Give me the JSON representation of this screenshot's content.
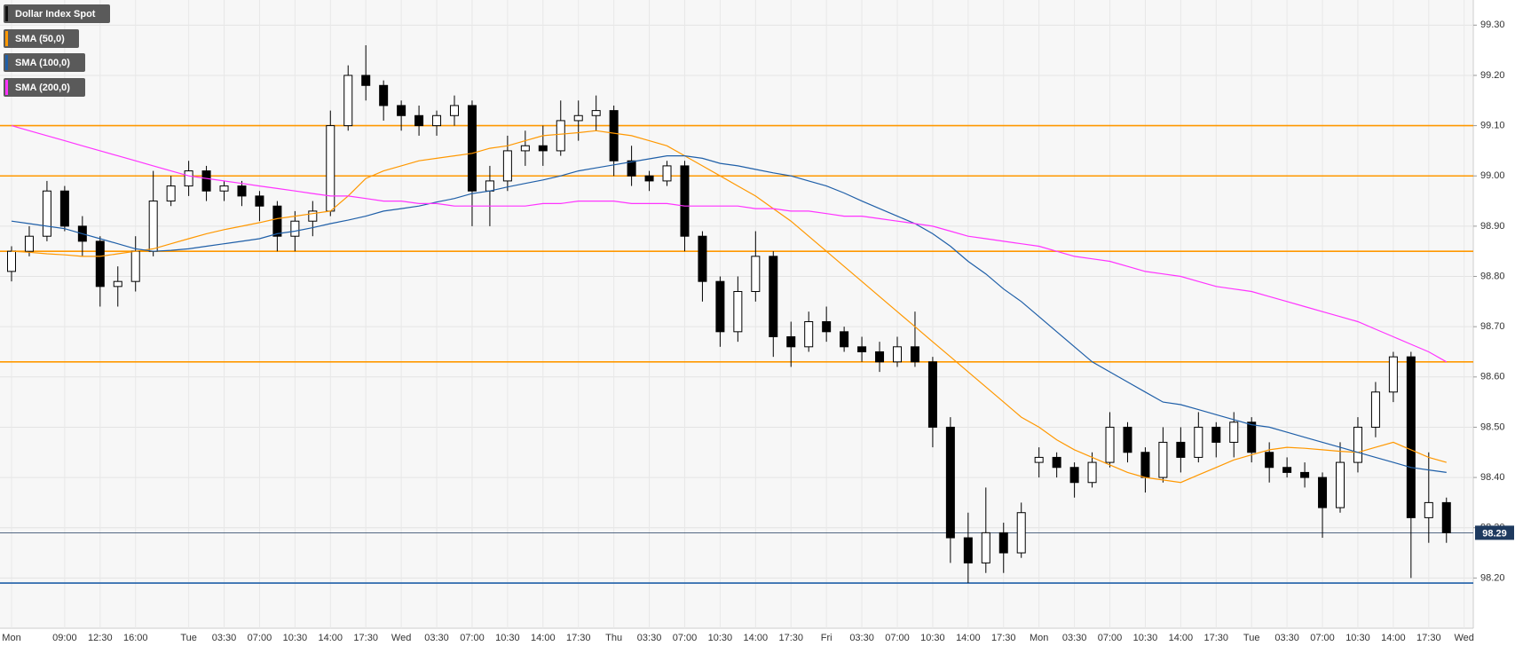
{
  "chart_data": {
    "type": "candlestick",
    "categories": [
      "Mon",
      null,
      null,
      "09:00",
      null,
      "12:30",
      null,
      "16:00",
      null,
      null,
      "Tue",
      null,
      "03:30",
      null,
      "07:00",
      null,
      "10:30",
      null,
      "14:00",
      null,
      "17:30",
      null,
      "Wed",
      null,
      "03:30",
      null,
      "07:00",
      null,
      "10:30",
      null,
      "14:00",
      null,
      "17:30",
      null,
      "Thu",
      null,
      "03:30",
      null,
      "07:00",
      null,
      "10:30",
      null,
      "14:00",
      null,
      "17:30",
      null,
      "Fri",
      null,
      "03:30",
      null,
      "07:00",
      null,
      "10:30",
      null,
      "14:00",
      null,
      "17:30",
      null,
      "Mon",
      null,
      "03:30",
      null,
      "07:00",
      null,
      "10:30",
      null,
      "14:00",
      null,
      "17:30",
      null,
      "Tue",
      null,
      "03:30",
      null,
      "07:00",
      null,
      "10:30",
      null,
      "14:00",
      null,
      "17:30",
      null,
      "Wed"
    ],
    "series": [
      {
        "name": "Dollar Index Spot",
        "color": "#000000",
        "up_color": "#ffffff",
        "down_color": "#000000",
        "open": [
          98.81,
          98.85,
          98.88,
          98.97,
          98.9,
          98.87,
          98.78,
          98.79,
          98.85,
          98.95,
          98.98,
          99.01,
          98.97,
          98.98,
          98.96,
          98.94,
          98.88,
          98.91,
          98.93,
          99.1,
          99.2,
          99.18,
          99.14,
          99.12,
          99.1,
          99.12,
          99.14,
          98.97,
          98.99,
          99.05,
          99.06,
          99.05,
          99.11,
          99.12,
          99.13,
          99.03,
          99.0,
          98.99,
          99.02,
          98.88,
          98.79,
          98.69,
          98.77,
          98.84,
          98.68,
          98.66,
          98.71,
          98.69,
          98.66,
          98.65,
          98.63,
          98.66,
          98.63,
          98.5,
          98.28,
          98.23,
          98.29,
          98.25,
          98.43,
          98.44,
          98.42,
          98.39,
          98.43,
          98.5,
          98.45,
          98.4,
          98.47,
          98.44,
          98.5,
          98.47,
          98.51,
          98.45,
          98.42,
          98.41,
          98.4,
          98.34,
          98.43,
          98.5,
          98.57,
          98.64,
          98.32,
          98.35,
          null
        ],
        "high": [
          98.86,
          98.9,
          98.99,
          98.98,
          98.92,
          98.88,
          98.82,
          98.88,
          99.01,
          99.0,
          99.03,
          99.02,
          98.99,
          98.99,
          98.97,
          98.95,
          98.93,
          98.95,
          99.13,
          99.22,
          99.26,
          99.19,
          99.15,
          99.14,
          99.13,
          99.16,
          99.15,
          99.02,
          99.08,
          99.09,
          99.1,
          99.15,
          99.15,
          99.16,
          99.14,
          99.06,
          99.01,
          99.03,
          99.03,
          98.89,
          98.8,
          98.8,
          98.89,
          98.85,
          98.71,
          98.73,
          98.74,
          98.7,
          98.68,
          98.67,
          98.68,
          98.73,
          98.64,
          98.52,
          98.33,
          98.38,
          98.31,
          98.35,
          98.46,
          98.45,
          98.43,
          98.45,
          98.53,
          98.51,
          98.46,
          98.5,
          98.5,
          98.53,
          98.51,
          98.53,
          98.52,
          98.47,
          98.44,
          98.43,
          98.41,
          98.47,
          98.52,
          98.59,
          98.65,
          98.65,
          98.45,
          98.36,
          null
        ],
        "low": [
          98.79,
          98.84,
          98.87,
          98.89,
          98.84,
          98.74,
          98.74,
          98.77,
          98.84,
          98.94,
          98.96,
          98.95,
          98.95,
          98.94,
          98.91,
          98.85,
          98.85,
          98.88,
          98.92,
          99.09,
          99.15,
          99.11,
          99.09,
          99.08,
          99.08,
          99.1,
          98.9,
          98.9,
          98.97,
          99.02,
          99.02,
          99.04,
          99.07,
          99.09,
          99.0,
          98.98,
          98.97,
          98.98,
          98.85,
          98.75,
          98.66,
          98.67,
          98.75,
          98.64,
          98.62,
          98.65,
          98.67,
          98.65,
          98.63,
          98.61,
          98.62,
          98.62,
          98.46,
          98.23,
          98.19,
          98.21,
          98.21,
          98.24,
          98.4,
          98.4,
          98.36,
          98.38,
          98.42,
          98.43,
          98.37,
          98.39,
          98.41,
          98.43,
          98.44,
          98.44,
          98.43,
          98.39,
          98.4,
          98.38,
          98.28,
          98.33,
          98.41,
          98.48,
          98.55,
          98.2,
          98.27,
          98.27,
          null
        ],
        "close": [
          98.85,
          98.88,
          98.97,
          98.9,
          98.87,
          98.78,
          98.79,
          98.85,
          98.95,
          98.98,
          99.01,
          98.97,
          98.98,
          98.96,
          98.94,
          98.88,
          98.91,
          98.93,
          99.1,
          99.2,
          99.18,
          99.14,
          99.12,
          99.1,
          99.12,
          99.14,
          98.97,
          98.99,
          99.05,
          99.06,
          99.05,
          99.11,
          99.12,
          99.13,
          99.03,
          99.0,
          98.99,
          99.02,
          98.88,
          98.79,
          98.69,
          98.77,
          98.84,
          98.68,
          98.66,
          98.71,
          98.69,
          98.66,
          98.65,
          98.63,
          98.66,
          98.63,
          98.5,
          98.28,
          98.23,
          98.29,
          98.25,
          98.33,
          98.44,
          98.42,
          98.39,
          98.43,
          98.5,
          98.45,
          98.4,
          98.47,
          98.44,
          98.5,
          98.47,
          98.51,
          98.45,
          98.42,
          98.41,
          98.4,
          98.34,
          98.43,
          98.5,
          98.57,
          98.64,
          98.32,
          98.35,
          98.29,
          null
        ]
      },
      {
        "name": "SMA (50,0)",
        "color": "#ff9800",
        "values": [
          98.85,
          98.848,
          98.845,
          98.843,
          98.84,
          98.84,
          98.845,
          98.85,
          98.855,
          98.865,
          98.875,
          98.885,
          98.893,
          98.9,
          98.907,
          98.915,
          98.92,
          98.925,
          98.93,
          98.96,
          98.995,
          99.01,
          99.02,
          99.03,
          99.035,
          99.04,
          99.045,
          99.055,
          99.06,
          99.07,
          99.08,
          99.083,
          99.086,
          99.09,
          99.085,
          99.08,
          99.07,
          99.06,
          99.04,
          99.02,
          99.0,
          98.98,
          98.96,
          98.935,
          98.91,
          98.88,
          98.85,
          98.82,
          98.79,
          98.76,
          98.73,
          98.7,
          98.67,
          98.64,
          98.61,
          98.58,
          98.55,
          98.52,
          98.5,
          98.475,
          98.455,
          98.44,
          98.425,
          98.41,
          98.4,
          98.395,
          98.39,
          98.405,
          98.42,
          98.435,
          98.445,
          98.455,
          98.46,
          98.458,
          98.455,
          98.452,
          98.45,
          98.46,
          98.47,
          98.455,
          98.44,
          98.43,
          null
        ]
      },
      {
        "name": "SMA (100,0)",
        "color": "#1f5fa8",
        "values": [
          98.91,
          98.905,
          98.9,
          98.895,
          98.885,
          98.875,
          98.865,
          98.855,
          98.85,
          98.852,
          98.855,
          98.86,
          98.865,
          98.87,
          98.875,
          98.885,
          98.89,
          98.897,
          98.905,
          98.912,
          98.92,
          98.93,
          98.935,
          98.94,
          98.948,
          98.955,
          98.965,
          98.97,
          98.978,
          98.985,
          98.992,
          99.0,
          99.01,
          99.016,
          99.022,
          99.028,
          99.034,
          99.04,
          99.04,
          99.035,
          99.025,
          99.02,
          99.013,
          99.006,
          99.0,
          98.99,
          98.98,
          98.966,
          98.95,
          98.935,
          98.92,
          98.905,
          98.885,
          98.86,
          98.83,
          98.805,
          98.775,
          98.75,
          98.72,
          98.69,
          98.66,
          98.63,
          98.61,
          98.59,
          98.57,
          98.55,
          98.545,
          98.535,
          98.525,
          98.515,
          98.505,
          98.5,
          98.49,
          98.48,
          98.47,
          98.46,
          98.45,
          98.44,
          98.43,
          98.42,
          98.415,
          98.41,
          null
        ]
      },
      {
        "name": "SMA (200,0)",
        "color": "#ff33ff",
        "values": [
          99.1,
          99.09,
          99.08,
          99.07,
          99.06,
          99.05,
          99.04,
          99.03,
          99.02,
          99.01,
          99.0,
          98.995,
          98.99,
          98.985,
          98.98,
          98.975,
          98.97,
          98.965,
          98.96,
          98.96,
          98.955,
          98.95,
          98.95,
          98.945,
          98.945,
          98.94,
          98.94,
          98.94,
          98.94,
          98.94,
          98.945,
          98.945,
          98.95,
          98.95,
          98.95,
          98.945,
          98.945,
          98.945,
          98.94,
          98.94,
          98.94,
          98.94,
          98.935,
          98.935,
          98.93,
          98.93,
          98.925,
          98.92,
          98.92,
          98.915,
          98.91,
          98.905,
          98.9,
          98.89,
          98.88,
          98.875,
          98.87,
          98.865,
          98.86,
          98.85,
          98.84,
          98.835,
          98.83,
          98.82,
          98.81,
          98.805,
          98.8,
          98.79,
          98.78,
          98.775,
          98.77,
          98.76,
          98.75,
          98.74,
          98.73,
          98.72,
          98.71,
          98.695,
          98.68,
          98.665,
          98.65,
          98.63,
          null
        ]
      }
    ],
    "levels": [
      {
        "value": 99.1,
        "color": "#ff9800"
      },
      {
        "value": 99.0,
        "color": "#ff9800"
      },
      {
        "value": 98.85,
        "color": "#ff9800"
      },
      {
        "value": 98.63,
        "color": "#ff9800"
      },
      {
        "value": 98.19,
        "color": "#1f5fa8"
      }
    ],
    "last_price": 98.29,
    "last_price_color": "#1e3a5f",
    "ylim": [
      98.1,
      99.35
    ],
    "yticks": [
      {
        "value": 98.2,
        "label": "98.20"
      },
      {
        "value": 98.3,
        "label": "98.30"
      },
      {
        "value": 98.4,
        "label": "98.40"
      },
      {
        "value": 98.5,
        "label": "98.50"
      },
      {
        "value": 98.6,
        "label": "98.60"
      },
      {
        "value": 98.7,
        "label": "98.70"
      },
      {
        "value": 98.8,
        "label": "98.80"
      },
      {
        "value": 98.9,
        "label": "98.90"
      },
      {
        "value": 99.0,
        "label": "99.00"
      },
      {
        "value": 99.1,
        "label": "99.10"
      },
      {
        "value": 99.2,
        "label": "99.20"
      },
      {
        "value": 99.3,
        "label": "99.30"
      }
    ],
    "grid": true,
    "legend": "top-left"
  }
}
